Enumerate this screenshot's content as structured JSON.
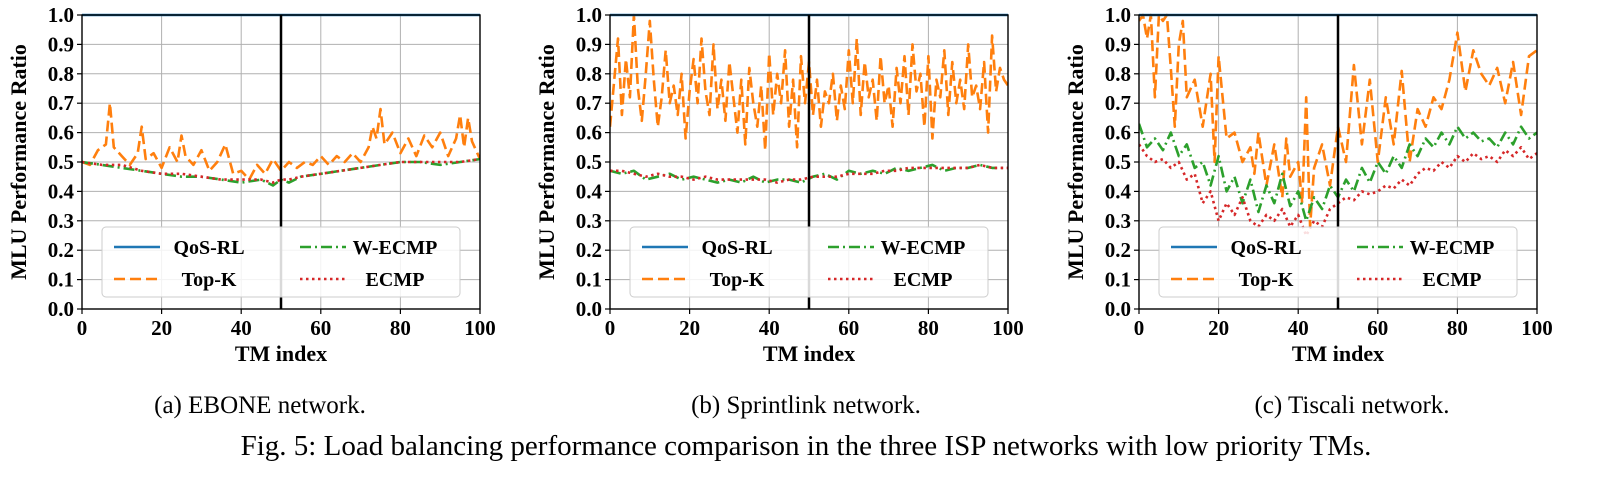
{
  "figure": {
    "caption": "Fig. 5: Load balancing performance comparison in the three ISP networks with low priority TMs."
  },
  "chart_data": [
    {
      "type": "line",
      "caption": "(a) EBONE network.",
      "xlabel": "TM index",
      "ylabel": "MLU Performance Ratio",
      "xlim": [
        0,
        100
      ],
      "ylim": [
        0.0,
        1.0
      ],
      "xticks": [
        "0",
        "20",
        "40",
        "60",
        "80",
        "100"
      ],
      "yticks": [
        "0.0",
        "0.1",
        "0.2",
        "0.3",
        "0.4",
        "0.5",
        "0.6",
        "0.7",
        "0.8",
        "0.9",
        "1.0"
      ],
      "grid": true,
      "legend": "lower center",
      "vline_x": 50,
      "series": [
        {
          "name": "QoS-RL",
          "style": "solid",
          "color": "#1f77b4",
          "x": [
            0,
            100
          ],
          "y": [
            1.0,
            1.0
          ]
        },
        {
          "name": "Top-K",
          "style": "dashed",
          "color": "#ff7f0e",
          "x": [
            0,
            2,
            4,
            6,
            7,
            8,
            10,
            12,
            14,
            15,
            16,
            18,
            20,
            22,
            24,
            25,
            26,
            28,
            30,
            32,
            34,
            36,
            38,
            40,
            42,
            44,
            46,
            48,
            50,
            52,
            54,
            56,
            58,
            60,
            62,
            64,
            66,
            68,
            70,
            72,
            73,
            74,
            75,
            76,
            78,
            80,
            82,
            84,
            86,
            88,
            90,
            92,
            94,
            95,
            96,
            97,
            98,
            100
          ],
          "y": [
            0.5,
            0.49,
            0.54,
            0.56,
            0.7,
            0.55,
            0.52,
            0.49,
            0.53,
            0.62,
            0.51,
            0.53,
            0.48,
            0.55,
            0.5,
            0.59,
            0.52,
            0.49,
            0.54,
            0.47,
            0.5,
            0.56,
            0.46,
            0.47,
            0.44,
            0.49,
            0.46,
            0.51,
            0.47,
            0.5,
            0.48,
            0.5,
            0.49,
            0.52,
            0.49,
            0.52,
            0.5,
            0.53,
            0.5,
            0.55,
            0.62,
            0.58,
            0.68,
            0.56,
            0.6,
            0.53,
            0.58,
            0.52,
            0.59,
            0.55,
            0.6,
            0.52,
            0.58,
            0.66,
            0.55,
            0.65,
            0.57,
            0.51
          ]
        },
        {
          "name": "W-ECMP",
          "style": "dashdot",
          "color": "#2ca02c",
          "x": [
            0,
            5,
            10,
            15,
            20,
            25,
            30,
            35,
            40,
            45,
            48,
            50,
            52,
            55,
            60,
            65,
            70,
            75,
            80,
            85,
            90,
            95,
            100
          ],
          "y": [
            0.5,
            0.49,
            0.48,
            0.47,
            0.46,
            0.45,
            0.45,
            0.44,
            0.43,
            0.44,
            0.42,
            0.44,
            0.43,
            0.45,
            0.46,
            0.47,
            0.48,
            0.49,
            0.5,
            0.5,
            0.49,
            0.5,
            0.51
          ]
        },
        {
          "name": "ECMP",
          "style": "dotted",
          "color": "#d62728",
          "x": [
            0,
            5,
            10,
            15,
            20,
            25,
            30,
            35,
            40,
            45,
            48,
            50,
            52,
            55,
            60,
            65,
            70,
            75,
            80,
            85,
            90,
            95,
            100
          ],
          "y": [
            0.5,
            0.49,
            0.49,
            0.47,
            0.46,
            0.46,
            0.45,
            0.44,
            0.44,
            0.44,
            0.43,
            0.44,
            0.44,
            0.45,
            0.46,
            0.47,
            0.48,
            0.49,
            0.5,
            0.5,
            0.5,
            0.5,
            0.51
          ]
        }
      ]
    },
    {
      "type": "line",
      "caption": "(b) Sprintlink network.",
      "xlabel": "TM index",
      "ylabel": "MLU Performance Ratio",
      "xlim": [
        0,
        100
      ],
      "ylim": [
        0.0,
        1.0
      ],
      "xticks": [
        "0",
        "20",
        "40",
        "60",
        "80",
        "100"
      ],
      "yticks": [
        "0.0",
        "0.1",
        "0.2",
        "0.3",
        "0.4",
        "0.5",
        "0.6",
        "0.7",
        "0.8",
        "0.9",
        "1.0"
      ],
      "grid": true,
      "legend": "lower center",
      "vline_x": 50,
      "series": [
        {
          "name": "QoS-RL",
          "style": "solid",
          "color": "#1f77b4",
          "x": [
            0,
            100
          ],
          "y": [
            1.0,
            1.0
          ]
        },
        {
          "name": "Top-K",
          "style": "dashed",
          "color": "#ff7f0e",
          "x": [
            0,
            2,
            3,
            4,
            5,
            6,
            7,
            8,
            9,
            10,
            11,
            12,
            13,
            14,
            15,
            16,
            17,
            18,
            19,
            20,
            21,
            22,
            23,
            24,
            25,
            26,
            27,
            28,
            29,
            30,
            31,
            32,
            33,
            34,
            35,
            36,
            37,
            38,
            39,
            40,
            41,
            42,
            43,
            44,
            45,
            46,
            47,
            48,
            49,
            50,
            51,
            52,
            53,
            54,
            55,
            56,
            57,
            58,
            59,
            60,
            61,
            62,
            63,
            64,
            65,
            66,
            67,
            68,
            69,
            70,
            71,
            72,
            73,
            74,
            75,
            76,
            77,
            78,
            79,
            80,
            81,
            82,
            83,
            84,
            85,
            86,
            87,
            88,
            89,
            90,
            91,
            92,
            93,
            94,
            95,
            96,
            97,
            98,
            99,
            100
          ],
          "y": [
            0.62,
            0.92,
            0.66,
            0.85,
            0.72,
            1.0,
            0.75,
            0.64,
            0.8,
            0.98,
            0.78,
            0.62,
            0.72,
            0.88,
            0.7,
            0.76,
            0.66,
            0.8,
            0.58,
            0.74,
            0.85,
            0.7,
            0.92,
            0.74,
            0.66,
            0.9,
            0.68,
            0.78,
            0.64,
            0.84,
            0.72,
            0.6,
            0.78,
            0.56,
            0.82,
            0.7,
            0.62,
            0.76,
            0.54,
            0.87,
            0.66,
            0.8,
            0.7,
            0.88,
            0.62,
            0.78,
            0.55,
            0.86,
            0.7,
            0.84,
            0.66,
            0.78,
            0.62,
            0.74,
            0.7,
            0.8,
            0.64,
            0.76,
            0.68,
            0.88,
            0.7,
            0.92,
            0.66,
            0.84,
            0.72,
            0.78,
            0.64,
            0.86,
            0.7,
            0.76,
            0.62,
            0.82,
            0.7,
            0.86,
            0.66,
            0.9,
            0.74,
            0.8,
            0.62,
            0.86,
            0.58,
            0.78,
            0.72,
            0.88,
            0.66,
            0.84,
            0.7,
            0.78,
            0.68,
            0.9,
            0.72,
            0.76,
            0.68,
            0.84,
            0.6,
            0.93,
            0.74,
            0.82,
            0.78,
            0.76
          ]
        },
        {
          "name": "W-ECMP",
          "style": "dashdot",
          "color": "#2ca02c",
          "x": [
            0,
            3,
            6,
            9,
            12,
            15,
            18,
            21,
            24,
            27,
            30,
            33,
            36,
            39,
            42,
            45,
            48,
            51,
            54,
            57,
            60,
            63,
            66,
            69,
            72,
            75,
            78,
            81,
            84,
            87,
            90,
            93,
            96,
            100
          ],
          "y": [
            0.47,
            0.46,
            0.47,
            0.44,
            0.45,
            0.46,
            0.44,
            0.45,
            0.44,
            0.43,
            0.44,
            0.43,
            0.45,
            0.43,
            0.44,
            0.44,
            0.43,
            0.45,
            0.46,
            0.44,
            0.47,
            0.46,
            0.47,
            0.46,
            0.48,
            0.47,
            0.48,
            0.49,
            0.47,
            0.48,
            0.48,
            0.49,
            0.48,
            0.48
          ]
        },
        {
          "name": "ECMP",
          "style": "dotted",
          "color": "#d62728",
          "x": [
            0,
            3,
            6,
            9,
            12,
            15,
            18,
            21,
            24,
            27,
            30,
            33,
            36,
            39,
            42,
            45,
            48,
            51,
            54,
            57,
            60,
            63,
            66,
            69,
            72,
            75,
            78,
            81,
            84,
            87,
            90,
            93,
            96,
            100
          ],
          "y": [
            0.47,
            0.47,
            0.46,
            0.45,
            0.46,
            0.45,
            0.45,
            0.44,
            0.45,
            0.44,
            0.44,
            0.44,
            0.44,
            0.44,
            0.43,
            0.44,
            0.44,
            0.45,
            0.45,
            0.45,
            0.46,
            0.46,
            0.46,
            0.47,
            0.47,
            0.48,
            0.48,
            0.48,
            0.48,
            0.48,
            0.48,
            0.49,
            0.48,
            0.48
          ]
        }
      ]
    },
    {
      "type": "line",
      "caption": "(c) Tiscali network.",
      "xlabel": "TM index",
      "ylabel": "MLU Performance Ratio",
      "xlim": [
        0,
        100
      ],
      "ylim": [
        0.0,
        1.0
      ],
      "xticks": [
        "0",
        "20",
        "40",
        "60",
        "80",
        "100"
      ],
      "yticks": [
        "0.0",
        "0.1",
        "0.2",
        "0.3",
        "0.4",
        "0.5",
        "0.6",
        "0.7",
        "0.8",
        "0.9",
        "1.0"
      ],
      "grid": true,
      "legend": "lower center",
      "vline_x": 50,
      "series": [
        {
          "name": "QoS-RL",
          "style": "solid",
          "color": "#1f77b4",
          "x": [
            0,
            100
          ],
          "y": [
            1.0,
            1.0
          ]
        },
        {
          "name": "Top-K",
          "style": "dashed",
          "color": "#ff7f0e",
          "x": [
            0,
            1,
            2,
            3,
            4,
            5,
            6,
            7,
            8,
            9,
            10,
            11,
            12,
            14,
            16,
            18,
            19,
            20,
            22,
            24,
            26,
            28,
            29,
            30,
            32,
            34,
            36,
            37,
            38,
            40,
            41,
            42,
            43,
            44,
            46,
            48,
            50,
            52,
            54,
            56,
            58,
            60,
            62,
            64,
            66,
            68,
            70,
            72,
            74,
            76,
            78,
            80,
            82,
            84,
            86,
            88,
            90,
            92,
            94,
            96,
            98,
            100
          ],
          "y": [
            0.98,
            1.0,
            0.92,
            1.0,
            0.72,
            1.0,
            0.98,
            1.0,
            0.82,
            0.62,
            0.9,
            0.98,
            0.72,
            0.78,
            0.62,
            0.8,
            0.5,
            0.86,
            0.58,
            0.6,
            0.5,
            0.55,
            0.46,
            0.6,
            0.42,
            0.56,
            0.38,
            0.58,
            0.45,
            0.5,
            0.36,
            0.72,
            0.28,
            0.48,
            0.56,
            0.42,
            0.62,
            0.5,
            0.83,
            0.56,
            0.78,
            0.5,
            0.72,
            0.56,
            0.81,
            0.5,
            0.68,
            0.62,
            0.72,
            0.68,
            0.78,
            0.94,
            0.74,
            0.88,
            0.8,
            0.76,
            0.82,
            0.7,
            0.84,
            0.66,
            0.86,
            0.88
          ]
        },
        {
          "name": "W-ECMP",
          "style": "dashdot",
          "color": "#2ca02c",
          "x": [
            0,
            2,
            4,
            6,
            8,
            10,
            12,
            14,
            16,
            18,
            20,
            22,
            24,
            26,
            28,
            30,
            32,
            34,
            36,
            38,
            40,
            42,
            44,
            46,
            48,
            50,
            52,
            54,
            56,
            58,
            60,
            62,
            64,
            66,
            68,
            70,
            72,
            74,
            76,
            78,
            80,
            82,
            84,
            86,
            88,
            90,
            92,
            94,
            96,
            98,
            100
          ],
          "y": [
            0.63,
            0.55,
            0.58,
            0.54,
            0.6,
            0.52,
            0.56,
            0.48,
            0.5,
            0.42,
            0.52,
            0.4,
            0.45,
            0.36,
            0.44,
            0.33,
            0.42,
            0.36,
            0.46,
            0.35,
            0.4,
            0.3,
            0.38,
            0.34,
            0.42,
            0.38,
            0.44,
            0.4,
            0.48,
            0.43,
            0.5,
            0.46,
            0.52,
            0.48,
            0.56,
            0.52,
            0.58,
            0.55,
            0.6,
            0.56,
            0.62,
            0.58,
            0.6,
            0.57,
            0.58,
            0.55,
            0.6,
            0.56,
            0.62,
            0.58,
            0.6
          ]
        },
        {
          "name": "ECMP",
          "style": "dotted",
          "color": "#d62728",
          "x": [
            0,
            2,
            4,
            6,
            8,
            10,
            12,
            14,
            16,
            18,
            20,
            22,
            24,
            26,
            28,
            30,
            32,
            34,
            36,
            38,
            40,
            42,
            44,
            46,
            48,
            50,
            52,
            54,
            56,
            58,
            60,
            62,
            64,
            66,
            68,
            70,
            72,
            74,
            76,
            78,
            80,
            82,
            84,
            86,
            88,
            90,
            92,
            94,
            96,
            98,
            100
          ],
          "y": [
            0.56,
            0.52,
            0.5,
            0.51,
            0.48,
            0.5,
            0.44,
            0.46,
            0.36,
            0.4,
            0.3,
            0.36,
            0.32,
            0.38,
            0.3,
            0.28,
            0.32,
            0.3,
            0.34,
            0.28,
            0.32,
            0.25,
            0.3,
            0.28,
            0.34,
            0.36,
            0.38,
            0.37,
            0.4,
            0.39,
            0.4,
            0.42,
            0.41,
            0.44,
            0.42,
            0.46,
            0.48,
            0.47,
            0.5,
            0.48,
            0.52,
            0.5,
            0.53,
            0.51,
            0.52,
            0.5,
            0.54,
            0.52,
            0.55,
            0.51,
            0.53
          ]
        }
      ]
    }
  ]
}
